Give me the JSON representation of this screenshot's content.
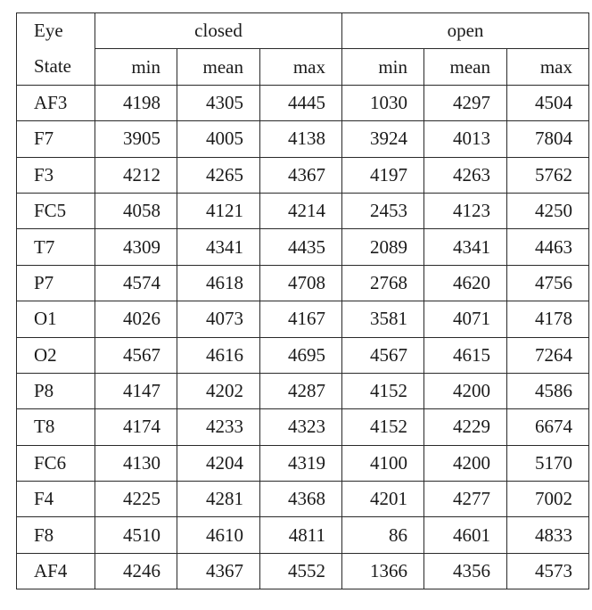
{
  "table": {
    "header": {
      "eye_label_line1": "Eye",
      "eye_label_line2": "State",
      "groups": [
        "closed",
        "open"
      ],
      "subcolumns": [
        "min",
        "mean",
        "max",
        "min",
        "mean",
        "max"
      ]
    },
    "rows": [
      {
        "label": "AF3",
        "values": [
          "4198",
          "4305",
          "4445",
          "1030",
          "4297",
          "4504"
        ]
      },
      {
        "label": "F7",
        "values": [
          "3905",
          "4005",
          "4138",
          "3924",
          "4013",
          "7804"
        ]
      },
      {
        "label": "F3",
        "values": [
          "4212",
          "4265",
          "4367",
          "4197",
          "4263",
          "5762"
        ]
      },
      {
        "label": "FC5",
        "values": [
          "4058",
          "4121",
          "4214",
          "2453",
          "4123",
          "4250"
        ]
      },
      {
        "label": "T7",
        "values": [
          "4309",
          "4341",
          "4435",
          "2089",
          "4341",
          "4463"
        ]
      },
      {
        "label": "P7",
        "values": [
          "4574",
          "4618",
          "4708",
          "2768",
          "4620",
          "4756"
        ]
      },
      {
        "label": "O1",
        "values": [
          "4026",
          "4073",
          "4167",
          "3581",
          "4071",
          "4178"
        ]
      },
      {
        "label": "O2",
        "values": [
          "4567",
          "4616",
          "4695",
          "4567",
          "4615",
          "7264"
        ]
      },
      {
        "label": "P8",
        "values": [
          "4147",
          "4202",
          "4287",
          "4152",
          "4200",
          "4586"
        ]
      },
      {
        "label": "T8",
        "values": [
          "4174",
          "4233",
          "4323",
          "4152",
          "4229",
          "6674"
        ]
      },
      {
        "label": "FC6",
        "values": [
          "4130",
          "4204",
          "4319",
          "4100",
          "4200",
          "5170"
        ]
      },
      {
        "label": "F4",
        "values": [
          "4225",
          "4281",
          "4368",
          "4201",
          "4277",
          "7002"
        ]
      },
      {
        "label": "F8",
        "values": [
          "4510",
          "4610",
          "4811",
          "86",
          "4601",
          "4833"
        ]
      },
      {
        "label": "AF4",
        "values": [
          "4246",
          "4367",
          "4552",
          "1366",
          "4356",
          "4573"
        ]
      }
    ]
  }
}
